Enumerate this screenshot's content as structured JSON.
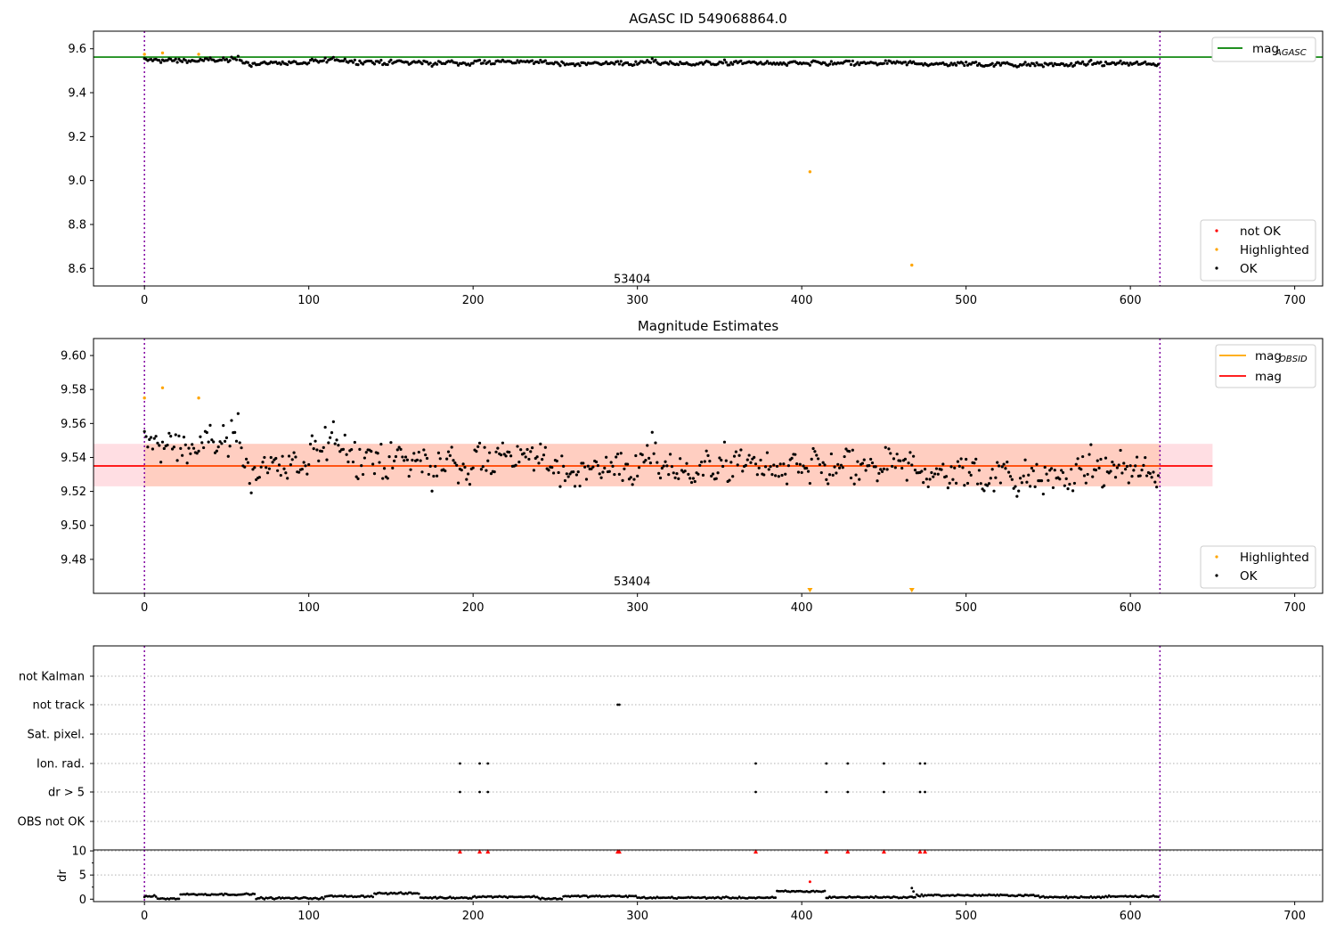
{
  "chart_data": [
    {
      "type": "scatter",
      "title": "AGASC ID 549068864.0",
      "xlim": [
        -31,
        717
      ],
      "ylim": [
        8.52,
        9.68
      ],
      "xticks": [
        0,
        100,
        200,
        300,
        400,
        500,
        600,
        700
      ],
      "yticks": [
        8.6,
        8.8,
        9.0,
        9.2,
        9.4,
        9.6
      ],
      "mag_agasc": 9.562,
      "vlines_x": [
        0,
        618
      ],
      "annotation": {
        "text": "53404",
        "x": 300,
        "y": 8.555
      },
      "series": [
        {
          "name": "not OK",
          "color": "#ff0000",
          "points": [
            [
              405,
              9.04
            ],
            [
              467,
              8.615
            ]
          ]
        },
        {
          "name": "Highlighted",
          "color": "#ffa500",
          "points": [
            [
              0,
              9.575
            ],
            [
              11,
              9.581
            ],
            [
              33,
              9.575
            ],
            [
              405,
              9.04
            ],
            [
              467,
              8.615
            ]
          ]
        },
        {
          "name": "OK",
          "color": "#000000",
          "n_points": 618,
          "center": 9.535,
          "range": [
            9.505,
            9.57
          ]
        }
      ],
      "legend_lines": [
        {
          "label": "mag",
          "sub": "AGASC",
          "color": "#008000"
        }
      ],
      "legend_points": [
        "not OK",
        "Highlighted",
        "OK"
      ]
    },
    {
      "type": "scatter",
      "title": "Magnitude Estimates",
      "xlim": [
        -31,
        717
      ],
      "ylim": [
        9.46,
        9.61
      ],
      "xticks": [
        0,
        100,
        200,
        300,
        400,
        500,
        600,
        700
      ],
      "yticks": [
        9.48,
        9.5,
        9.52,
        9.54,
        9.56,
        9.58,
        9.6
      ],
      "mag": 9.535,
      "mag_band": [
        9.523,
        9.548
      ],
      "band_xlim": [
        -31,
        650
      ],
      "vlines_x": [
        0,
        618
      ],
      "annotation": {
        "text": "53404",
        "x": 300,
        "y": 9.465
      },
      "series": [
        {
          "name": "Highlighted",
          "color": "#ffa500",
          "points": [
            [
              0,
              9.575
            ],
            [
              11,
              9.581
            ],
            [
              33,
              9.575
            ]
          ],
          "below_range_x": [
            405,
            467
          ]
        },
        {
          "name": "OK",
          "color": "#000000",
          "n_points": 618,
          "center": 9.535,
          "range": [
            9.505,
            9.57
          ]
        }
      ],
      "legend_lines": [
        {
          "label": "mag",
          "sub": "OBSID",
          "color": "#ffa500"
        },
        {
          "label": "mag",
          "sub": "",
          "color": "#ff0000"
        }
      ],
      "legend_points": [
        "Highlighted",
        "OK"
      ]
    },
    {
      "type": "scatter",
      "title": "",
      "xlim": [
        -31,
        717
      ],
      "categories": [
        "not Kalman",
        "not track",
        "Sat. pixel.",
        "Ion. rad.",
        "dr > 5",
        "OBS not OK"
      ],
      "flags": {
        "not Kalman": [],
        "not track": [
          288,
          289
        ],
        "Sat. pixel.": [],
        "Ion. rad.": [
          192,
          204,
          209,
          372,
          415,
          428,
          450,
          472,
          475
        ],
        "dr > 5": [
          192,
          204,
          209,
          372,
          415,
          428,
          450,
          472,
          475
        ],
        "OBS not OK": []
      },
      "vlines_x": [
        0,
        618
      ]
    },
    {
      "type": "scatter",
      "title": "",
      "ylabel": "dr",
      "xlim": [
        -31,
        717
      ],
      "ylim": [
        -0.5,
        10.2
      ],
      "xticks": [
        0,
        100,
        200,
        300,
        400,
        500,
        600,
        700
      ],
      "yticks": [
        0,
        5,
        10
      ],
      "clipped_markers_x": [
        192,
        204,
        209,
        288,
        289,
        372,
        415,
        428,
        450,
        472,
        475
      ],
      "series": [
        {
          "name": "dr",
          "color": "#000000",
          "n_points": 618,
          "range": [
            0,
            2.4
          ]
        },
        {
          "name": "not OK",
          "color": "#ff0000",
          "points": [
            [
              405,
              3.6
            ]
          ]
        }
      ],
      "vlines_x": [
        0,
        618
      ]
    }
  ]
}
